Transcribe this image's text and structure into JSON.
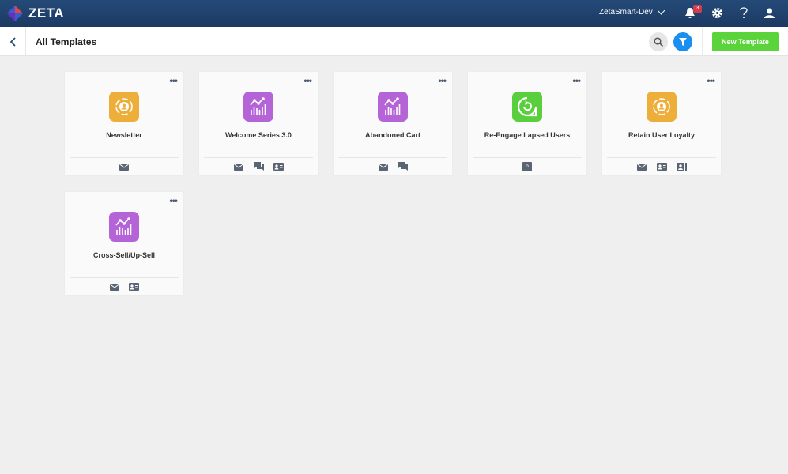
{
  "app": {
    "brand": "ZETA",
    "account": "ZetaSmart-Dev",
    "notification_count": "3"
  },
  "header": {
    "title": "All Templates",
    "new_button": "New Template"
  },
  "colors": {
    "orange": "#eeae3a",
    "purple": "#b564d8",
    "green": "#59cf3e",
    "accent": "#1a8ff0",
    "new_button": "#5bd43c"
  },
  "templates": [
    {
      "name": "Newsletter",
      "icon": "user-cycle-icon",
      "color": "orange",
      "channels": [
        "email"
      ]
    },
    {
      "name": "Welcome Series 3.0",
      "icon": "chart-icon",
      "color": "purple",
      "channels": [
        "email",
        "chat",
        "contact-card"
      ]
    },
    {
      "name": "Abandoned Cart",
      "icon": "chart-icon",
      "color": "purple",
      "channels": [
        "email",
        "chat"
      ]
    },
    {
      "name": "Re-Engage Lapsed Users",
      "icon": "refresh-bubble-icon",
      "color": "green",
      "channels": [
        "6"
      ]
    },
    {
      "name": "Retain User Loyalty",
      "icon": "user-cycle-icon",
      "color": "orange",
      "channels": [
        "email",
        "contact-card",
        "id-card"
      ]
    },
    {
      "name": "Cross-Sell/Up-Sell",
      "icon": "chart-icon",
      "color": "purple",
      "channels": [
        "email",
        "contact-card"
      ]
    }
  ]
}
